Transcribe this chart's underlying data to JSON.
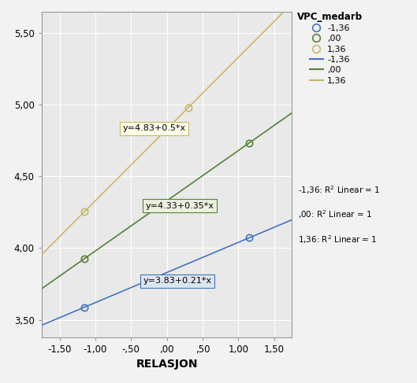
{
  "title": "VPC_medarb",
  "xlabel": "RELASJON",
  "ylabel": "",
  "xlim": [
    -1.75,
    1.75
  ],
  "ylim": [
    3.38,
    5.65
  ],
  "xticks": [
    -1.5,
    -1.0,
    -0.5,
    0.0,
    0.5,
    1.0,
    1.5
  ],
  "yticks": [
    3.5,
    4.0,
    4.5,
    5.0,
    5.5
  ],
  "xtick_labels": [
    "-1,50",
    "-1,00",
    "-,50",
    ",00",
    ",50",
    "1,00",
    "1,50"
  ],
  "ytick_labels": [
    "3,50",
    "4,00",
    "4,50",
    "5,00",
    "5,50"
  ],
  "lines": [
    {
      "label_circle": "-1,36",
      "label_line": "-1,36",
      "intercept": 3.83,
      "slope": 0.21,
      "color": "#4472c4",
      "eq_label": "y=3.83+0.21*x",
      "eq_x": 0.15,
      "eq_y": 3.77,
      "box_facecolor": "#dce6f1",
      "box_edgecolor": "#4472c4",
      "point_x": [
        -1.15,
        1.15
      ],
      "point_y": [
        3.5885,
        4.0715
      ]
    },
    {
      "label_circle": ",00",
      "label_line": ",00",
      "intercept": 4.33,
      "slope": 0.35,
      "color": "#548235",
      "eq_label": "y=4.33+0.35*x",
      "eq_x": 0.18,
      "eq_y": 4.295,
      "box_facecolor": "#ebf1de",
      "box_edgecolor": "#548235",
      "point_x": [
        -1.15,
        1.15
      ],
      "point_y": [
        3.9275,
        4.7325
      ]
    },
    {
      "label_circle": "1,36",
      "label_line": "1,36",
      "intercept": 4.83,
      "slope": 0.5,
      "color": "#c8b866",
      "eq_label": "y=4.83+0.5*x",
      "eq_x": -0.18,
      "eq_y": 4.835,
      "box_facecolor": "#fefee8",
      "box_edgecolor": "#c8b866",
      "point_x": [
        -1.15,
        0.3
      ],
      "point_y": [
        4.255,
        4.98
      ]
    }
  ],
  "bg_color": "#e9e9e9",
  "grid_color": "#ffffff",
  "fig_color": "#f2f2f2",
  "legend_r2_lines": [
    "-1,36: R² Linear = 1",
    ",00: R² Linear = 1",
    "1,36: R² Linear = 1"
  ],
  "legend_title": "VPC_medarb"
}
